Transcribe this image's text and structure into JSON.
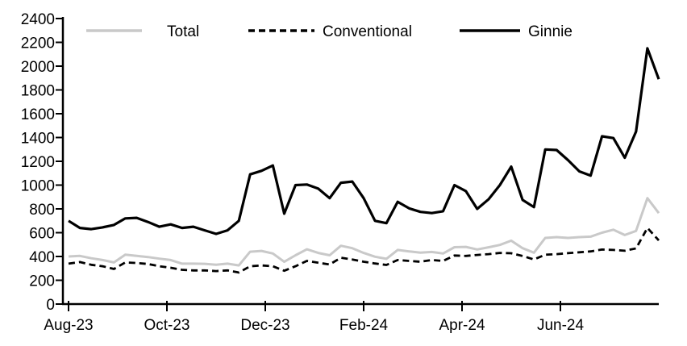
{
  "chart_data": {
    "type": "line",
    "title": "",
    "xlabel": "",
    "ylabel": "",
    "ylim": [
      0,
      2400
    ],
    "y_ticks": [
      0,
      200,
      400,
      600,
      800,
      1000,
      1200,
      1400,
      1600,
      1800,
      2000,
      2200,
      2400
    ],
    "x_tick_labels": [
      "Aug-23",
      "Oct-23",
      "Dec-23",
      "Feb-24",
      "Apr-24",
      "Jun-24"
    ],
    "x_unit": "weekly observations, Aug-2023 through Aug-2024",
    "grid": "off",
    "legend_position": "top",
    "series": [
      {
        "name": "Total",
        "color": "#c9c9c9",
        "style": "solid",
        "values": [
          400,
          405,
          385,
          370,
          350,
          415,
          405,
          395,
          382,
          370,
          340,
          340,
          338,
          330,
          340,
          325,
          440,
          447,
          425,
          355,
          410,
          460,
          430,
          410,
          490,
          470,
          430,
          398,
          380,
          455,
          443,
          432,
          438,
          425,
          478,
          481,
          459,
          477,
          497,
          533,
          470,
          432,
          556,
          563,
          556,
          563,
          567,
          600,
          625,
          580,
          615,
          890,
          765
        ]
      },
      {
        "name": "Conventional",
        "color": "#000000",
        "style": "dashed",
        "values": [
          340,
          353,
          330,
          318,
          295,
          350,
          345,
          337,
          318,
          305,
          288,
          283,
          283,
          277,
          283,
          265,
          318,
          325,
          318,
          280,
          318,
          363,
          347,
          333,
          390,
          375,
          356,
          341,
          329,
          370,
          363,
          356,
          370,
          363,
          408,
          405,
          413,
          420,
          430,
          427,
          404,
          375,
          415,
          420,
          428,
          435,
          443,
          458,
          455,
          448,
          468,
          640,
          535
        ]
      },
      {
        "name": "Ginnie",
        "color": "#000000",
        "style": "solid",
        "values": [
          700,
          640,
          630,
          645,
          665,
          720,
          725,
          690,
          650,
          670,
          640,
          650,
          620,
          590,
          620,
          700,
          1090,
          1120,
          1165,
          760,
          1000,
          1005,
          970,
          890,
          1020,
          1030,
          890,
          700,
          680,
          860,
          805,
          775,
          765,
          780,
          1000,
          950,
          800,
          880,
          1000,
          1155,
          875,
          815,
          1300,
          1295,
          1210,
          1115,
          1080,
          1410,
          1395,
          1230,
          1450,
          2150,
          1890
        ]
      }
    ]
  }
}
